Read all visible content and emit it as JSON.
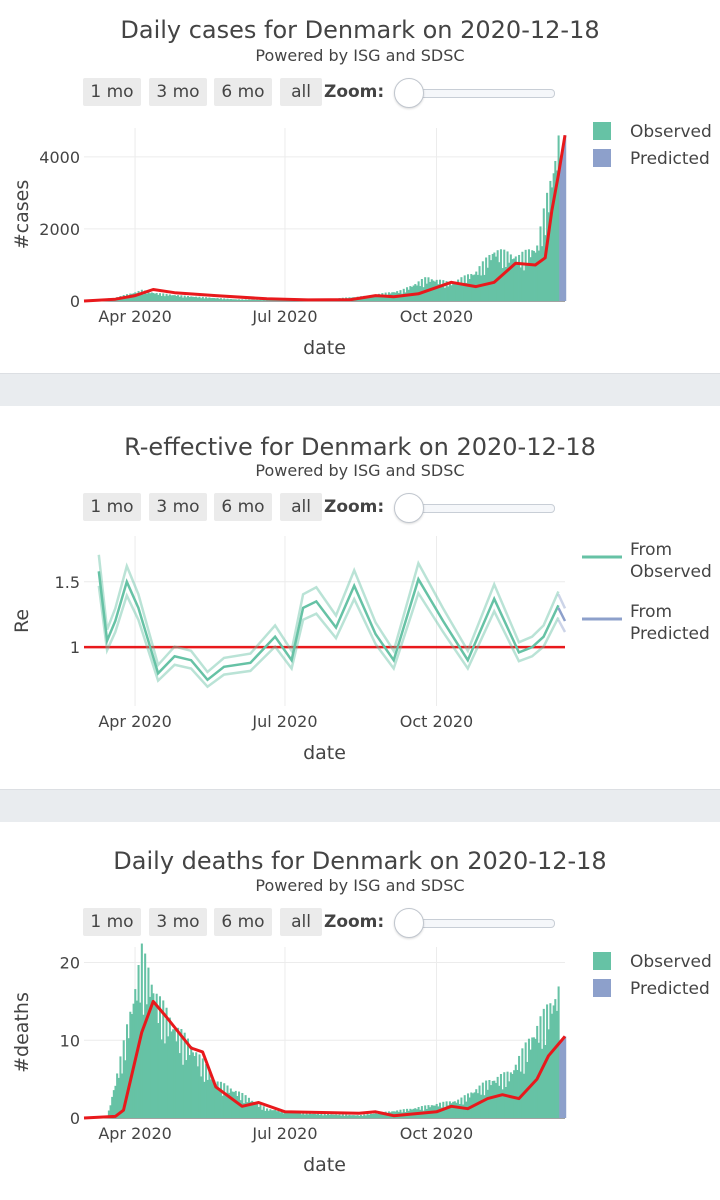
{
  "controls": {
    "buttons": [
      "1 mo",
      "3 mo",
      "6 mo",
      "all"
    ],
    "zoom_label": "Zoom:",
    "zoom_value": 0
  },
  "colors": {
    "observed": "#66c2a5",
    "predicted": "#8da0cb",
    "fit": "#e8191c"
  },
  "chart_data": [
    {
      "type": "bar",
      "title": "Daily cases for Denmark on 2020-12-18",
      "subtitle": "Powered by ISG and SDSC",
      "xlabel": "date",
      "ylabel": "#cases",
      "x_range": [
        "2020-03-01",
        "2020-12-18"
      ],
      "x_ticks": [
        "Apr 2020",
        "Jul 2020",
        "Oct 2020"
      ],
      "y_ticks": [
        "0",
        "2000",
        "4000"
      ],
      "ylim": [
        0,
        4800
      ],
      "legend": {
        "position": "top-right",
        "entries": [
          "Observed",
          "Predicted"
        ]
      },
      "series": [
        {
          "name": "Observed",
          "kind": "bars",
          "points": [
            [
              "2020-03-01",
              0
            ],
            [
              "2020-03-20",
              80
            ],
            [
              "2020-04-05",
              250
            ],
            [
              "2020-04-15",
              180
            ],
            [
              "2020-05-01",
              120
            ],
            [
              "2020-06-01",
              40
            ],
            [
              "2020-07-01",
              20
            ],
            [
              "2020-08-01",
              60
            ],
            [
              "2020-08-20",
              120
            ],
            [
              "2020-09-10",
              250
            ],
            [
              "2020-09-25",
              550
            ],
            [
              "2020-10-10",
              420
            ],
            [
              "2020-10-25",
              700
            ],
            [
              "2020-11-05",
              1200
            ],
            [
              "2020-11-20",
              1050
            ],
            [
              "2020-12-01",
              1300
            ],
            [
              "2020-12-10",
              3000
            ],
            [
              "2020-12-14",
              3800
            ]
          ]
        },
        {
          "name": "Predicted",
          "kind": "bars",
          "points": [
            [
              "2020-12-15",
              3900
            ],
            [
              "2020-12-18",
              4600
            ]
          ]
        },
        {
          "name": "fit",
          "kind": "line",
          "points": [
            [
              "2020-03-01",
              0
            ],
            [
              "2020-03-20",
              50
            ],
            [
              "2020-04-01",
              150
            ],
            [
              "2020-04-12",
              320
            ],
            [
              "2020-04-25",
              230
            ],
            [
              "2020-05-20",
              150
            ],
            [
              "2020-06-20",
              60
            ],
            [
              "2020-07-15",
              30
            ],
            [
              "2020-08-10",
              40
            ],
            [
              "2020-08-25",
              150
            ],
            [
              "2020-09-05",
              120
            ],
            [
              "2020-09-20",
              200
            ],
            [
              "2020-10-10",
              520
            ],
            [
              "2020-10-25",
              400
            ],
            [
              "2020-11-05",
              520
            ],
            [
              "2020-11-18",
              1050
            ],
            [
              "2020-11-30",
              1000
            ],
            [
              "2020-12-06",
              1200
            ],
            [
              "2020-12-10",
              2500
            ],
            [
              "2020-12-14",
              3500
            ],
            [
              "2020-12-18",
              4600
            ]
          ]
        }
      ]
    },
    {
      "type": "line",
      "title": "R-effective for Denmark on 2020-12-18",
      "subtitle": "Powered by ISG and SDSC",
      "xlabel": "date",
      "ylabel": "Re",
      "x_range": [
        "2020-03-01",
        "2020-12-18"
      ],
      "x_ticks": [
        "Apr 2020",
        "Jul 2020",
        "Oct 2020"
      ],
      "y_ticks": [
        "1",
        "1.5"
      ],
      "ylim": [
        0.55,
        1.85
      ],
      "reference_line": 1,
      "legend": {
        "position": "top-right",
        "entries": [
          "From Observed",
          "From Predicted"
        ]
      },
      "series": [
        {
          "name": "From Observed",
          "kind": "line",
          "points": [
            [
              "2020-03-10",
              1.58
            ],
            [
              "2020-03-15",
              1.05
            ],
            [
              "2020-03-20",
              1.2
            ],
            [
              "2020-03-27",
              1.5
            ],
            [
              "2020-04-03",
              1.3
            ],
            [
              "2020-04-15",
              0.8
            ],
            [
              "2020-04-25",
              0.93
            ],
            [
              "2020-05-05",
              0.9
            ],
            [
              "2020-05-15",
              0.75
            ],
            [
              "2020-05-25",
              0.85
            ],
            [
              "2020-06-10",
              0.88
            ],
            [
              "2020-06-25",
              1.08
            ],
            [
              "2020-07-05",
              0.9
            ],
            [
              "2020-07-12",
              1.3
            ],
            [
              "2020-07-20",
              1.35
            ],
            [
              "2020-08-01",
              1.15
            ],
            [
              "2020-08-12",
              1.47
            ],
            [
              "2020-08-25",
              1.1
            ],
            [
              "2020-09-05",
              0.9
            ],
            [
              "2020-09-20",
              1.52
            ],
            [
              "2020-10-05",
              1.2
            ],
            [
              "2020-10-20",
              0.9
            ],
            [
              "2020-11-05",
              1.37
            ],
            [
              "2020-11-20",
              0.96
            ],
            [
              "2020-11-28",
              1.0
            ],
            [
              "2020-12-05",
              1.08
            ],
            [
              "2020-12-14",
              1.32
            ]
          ]
        },
        {
          "name": "From Predicted",
          "kind": "line",
          "points": [
            [
              "2020-12-14",
              1.3
            ],
            [
              "2020-12-18",
              1.2
            ]
          ]
        }
      ]
    },
    {
      "type": "bar",
      "title": "Daily deaths for Denmark on 2020-12-18",
      "subtitle": "Powered by ISG and SDSC",
      "xlabel": "date",
      "ylabel": "#deaths",
      "x_range": [
        "2020-03-01",
        "2020-12-18"
      ],
      "x_ticks": [
        "Apr 2020",
        "Jul 2020",
        "Oct 2020"
      ],
      "y_ticks": [
        "0",
        "10",
        "20"
      ],
      "ylim": [
        0,
        22
      ],
      "legend": {
        "position": "top-right",
        "entries": [
          "Observed",
          "Predicted"
        ]
      },
      "series": [
        {
          "name": "Observed",
          "kind": "bars",
          "points": [
            [
              "2020-03-01",
              0
            ],
            [
              "2020-03-15",
              0
            ],
            [
              "2020-03-25",
              8
            ],
            [
              "2020-04-05",
              18
            ],
            [
              "2020-04-15",
              13
            ],
            [
              "2020-04-25",
              10
            ],
            [
              "2020-05-05",
              8
            ],
            [
              "2020-05-20",
              4
            ],
            [
              "2020-06-01",
              3
            ],
            [
              "2020-06-20",
              1
            ],
            [
              "2020-07-15",
              0.5
            ],
            [
              "2020-08-15",
              0.3
            ],
            [
              "2020-09-15",
              1
            ],
            [
              "2020-10-15",
              2
            ],
            [
              "2020-11-01",
              4
            ],
            [
              "2020-11-15",
              5
            ],
            [
              "2020-12-01",
              10
            ],
            [
              "2020-12-14",
              14
            ]
          ]
        },
        {
          "name": "Predicted",
          "kind": "bars",
          "points": [
            [
              "2020-12-15",
              10
            ],
            [
              "2020-12-18",
              10.5
            ]
          ]
        },
        {
          "name": "fit",
          "kind": "line",
          "points": [
            [
              "2020-03-01",
              0
            ],
            [
              "2020-03-20",
              0.2
            ],
            [
              "2020-03-25",
              1
            ],
            [
              "2020-04-05",
              11
            ],
            [
              "2020-04-12",
              15
            ],
            [
              "2020-04-20",
              13
            ],
            [
              "2020-05-05",
              9
            ],
            [
              "2020-05-12",
              8.5
            ],
            [
              "2020-05-20",
              4
            ],
            [
              "2020-06-05",
              1.5
            ],
            [
              "2020-06-15",
              2
            ],
            [
              "2020-07-01",
              0.8
            ],
            [
              "2020-08-15",
              0.6
            ],
            [
              "2020-08-25",
              0.8
            ],
            [
              "2020-09-05",
              0.3
            ],
            [
              "2020-10-01",
              0.8
            ],
            [
              "2020-10-10",
              1.5
            ],
            [
              "2020-10-20",
              1.2
            ],
            [
              "2020-11-01",
              2.5
            ],
            [
              "2020-11-10",
              3
            ],
            [
              "2020-11-20",
              2.5
            ],
            [
              "2020-12-01",
              5
            ],
            [
              "2020-12-08",
              8
            ],
            [
              "2020-12-18",
              10.5
            ]
          ]
        }
      ]
    }
  ]
}
